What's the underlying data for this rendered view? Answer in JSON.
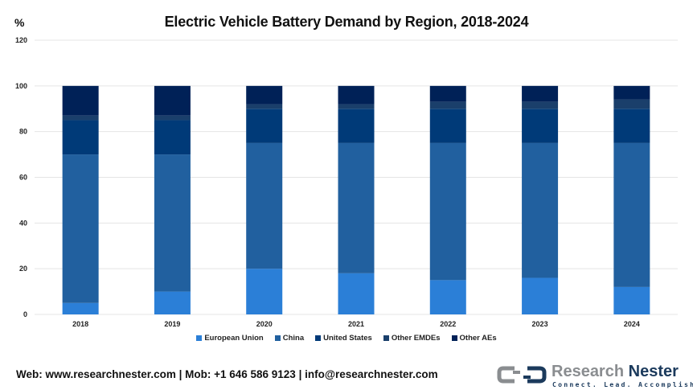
{
  "header": {
    "unit_label": "%",
    "title": "Electric Vehicle Battery Demand by Region, 2018-2024"
  },
  "chart_data": {
    "type": "bar",
    "stacked": true,
    "title": "Electric Vehicle Battery Demand by Region, 2018-2024",
    "xlabel": "",
    "ylabel": "%",
    "ylim": [
      0,
      120
    ],
    "yticks": [
      0,
      20,
      40,
      60,
      80,
      100,
      120
    ],
    "grid": true,
    "legend_position": "bottom",
    "categories": [
      "2018",
      "2019",
      "2020",
      "2021",
      "2022",
      "2023",
      "2024"
    ],
    "series": [
      {
        "name": "European Union",
        "color": "#2b7fd7",
        "values": [
          5,
          10,
          20,
          18,
          15,
          16,
          12
        ]
      },
      {
        "name": "China",
        "color": "#21609f",
        "values": [
          65,
          60,
          55,
          57,
          60,
          59,
          63
        ]
      },
      {
        "name": "United States",
        "color": "#003a78",
        "values": [
          15,
          15,
          15,
          15,
          15,
          15,
          15
        ]
      },
      {
        "name": "Other EMDEs",
        "color": "#1a3f6b",
        "values": [
          2,
          2,
          2,
          2,
          3,
          3,
          4
        ]
      },
      {
        "name": "Other AEs",
        "color": "#002157",
        "values": [
          13,
          13,
          8,
          8,
          7,
          7,
          6
        ]
      }
    ]
  },
  "footer": {
    "contact": "Web: www.researchnester.com | Mob: +1 646 586 9123 | info@researchnester.com"
  },
  "logo": {
    "word1": "Research",
    "word2": "Nester",
    "tagline": "Connect. Lead. Accomplish"
  }
}
